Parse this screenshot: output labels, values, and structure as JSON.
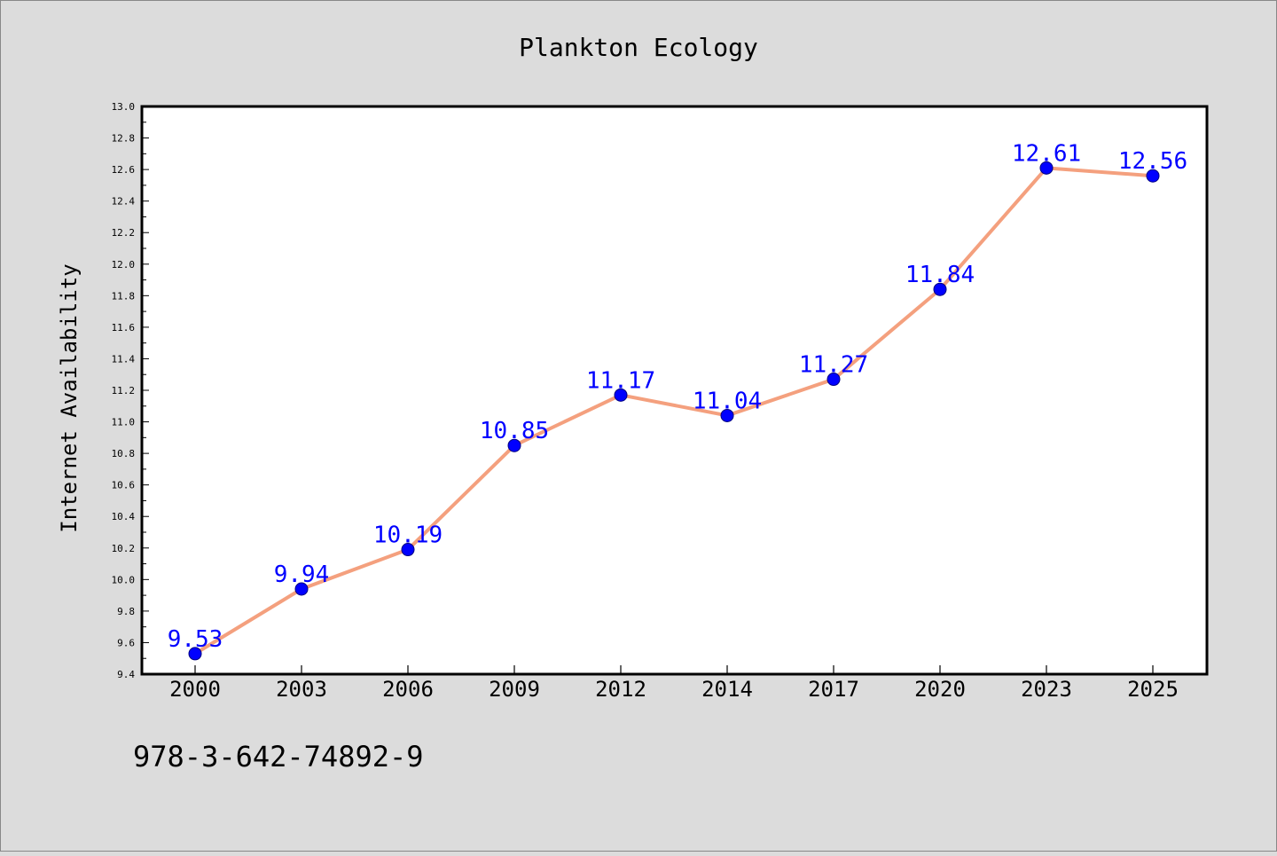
{
  "chart_data": {
    "type": "line",
    "title": "Plankton Ecology",
    "xlabel": "",
    "ylabel": "Internet Availability",
    "categories": [
      "2000",
      "2003",
      "2006",
      "2009",
      "2012",
      "2014",
      "2017",
      "2020",
      "2023",
      "2025"
    ],
    "series": [
      {
        "values": [
          9.53,
          9.94,
          10.19,
          10.85,
          11.17,
          11.04,
          11.27,
          11.84,
          12.61,
          12.56
        ],
        "labels": [
          "9.53",
          "9.94",
          "10.19",
          "10.85",
          "11.17",
          "11.04",
          "11.27",
          "11.84",
          "12.61",
          "12.56"
        ]
      }
    ],
    "ylim": [
      9.4,
      13.0
    ],
    "yticks": [
      "9.4",
      "9.6",
      "9.8",
      "10.0",
      "10.2",
      "10.4",
      "10.6",
      "10.8",
      "11.0",
      "11.2",
      "11.4",
      "11.6",
      "11.8",
      "12.0",
      "12.2",
      "12.4",
      "12.6",
      "12.8",
      "13.0"
    ],
    "grid": false,
    "line_color": "#f4a07e",
    "marker_color": "#0000ff",
    "label_color": "#0000ff",
    "background_color": "#dcdcdc",
    "plot_background": "#ffffff"
  },
  "footer": {
    "isbn": "978-3-642-74892-9"
  }
}
